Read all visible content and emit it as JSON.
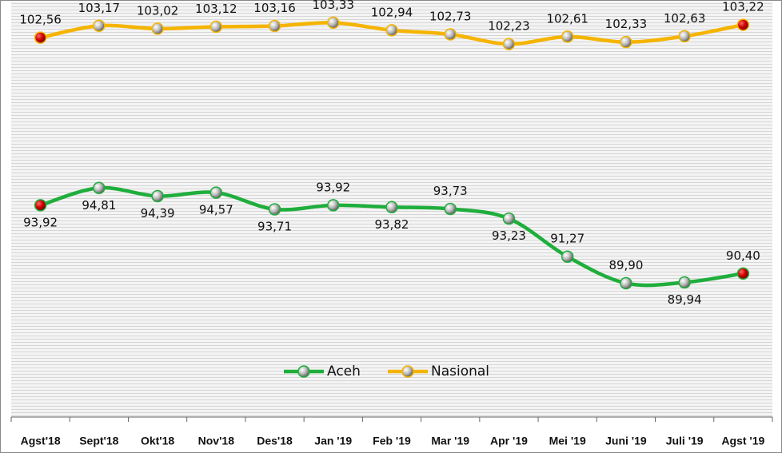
{
  "chart_data": {
    "type": "line",
    "categories": [
      "Agst'18",
      "Sept'18",
      "Okt'18",
      "Nov'18",
      "Des'18",
      "Jan '19",
      "Feb '19",
      "Mar '19",
      "Apr '19",
      "Mei '19",
      "Juni '19",
      "Juli '19",
      "Agst '19"
    ],
    "series": [
      {
        "name": "Aceh",
        "color": "#1fae3c",
        "values": [
          93.92,
          94.81,
          94.39,
          94.57,
          93.71,
          93.92,
          93.82,
          93.73,
          93.23,
          91.27,
          89.9,
          89.94,
          90.4
        ],
        "value_labels": [
          "93,92",
          "94,81",
          "94,39",
          "94,57",
          "93,71",
          "93,92",
          "93,82",
          "93,73",
          "93,23",
          "91,27",
          "89,90",
          "89,94",
          "90,40"
        ]
      },
      {
        "name": "Nasional",
        "color": "#f5b400",
        "values": [
          102.56,
          103.17,
          103.02,
          103.12,
          103.16,
          103.33,
          102.94,
          102.73,
          102.23,
          102.61,
          102.33,
          102.63,
          103.22
        ],
        "value_labels": [
          "102,56",
          "103,17",
          "103,02",
          "103,12",
          "103,16",
          "103,33",
          "102,94",
          "102,73",
          "102,23",
          "102,61",
          "102,33",
          "102,63",
          "103,22"
        ]
      }
    ],
    "ylim": [
      83,
      104.5
    ],
    "legend": "lower center"
  }
}
